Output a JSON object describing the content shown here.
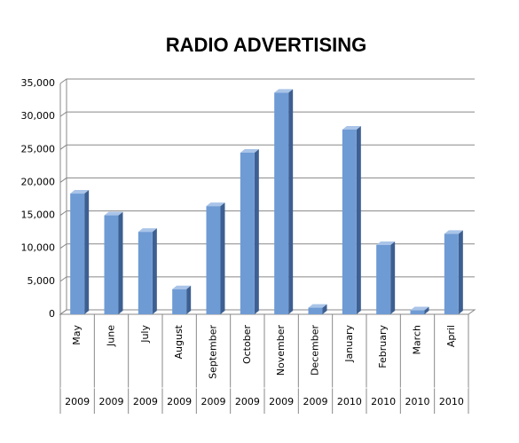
{
  "chart_data": {
    "type": "bar3d",
    "title": "RADIO ADVERTISING",
    "categories": [
      "May",
      "June",
      "July",
      "August",
      "September",
      "October",
      "November",
      "December",
      "January",
      "February",
      "March",
      "April"
    ],
    "category_groups": [
      "2009",
      "2009",
      "2009",
      "2009",
      "2009",
      "2009",
      "2009",
      "2009",
      "2010",
      "2010",
      "2010",
      "2010"
    ],
    "values": [
      18300,
      15000,
      12500,
      3800,
      16400,
      24500,
      33600,
      1000,
      28000,
      10500,
      600,
      12200
    ],
    "color": "#6f9bd4",
    "ylim": [
      0,
      35000
    ],
    "yticks": [
      0,
      {
        "value": 5000,
        "label": "5,000"
      },
      {
        "value": 10000,
        "label": "10,000"
      },
      {
        "value": 15000,
        "label": "15,000"
      },
      {
        "value": 20000,
        "label": "20,000"
      },
      {
        "value": 25000,
        "label": "25,000"
      },
      {
        "value": 30000,
        "label": "30,000"
      },
      {
        "value": 35000,
        "label": "35,000"
      }
    ],
    "grid": true
  }
}
